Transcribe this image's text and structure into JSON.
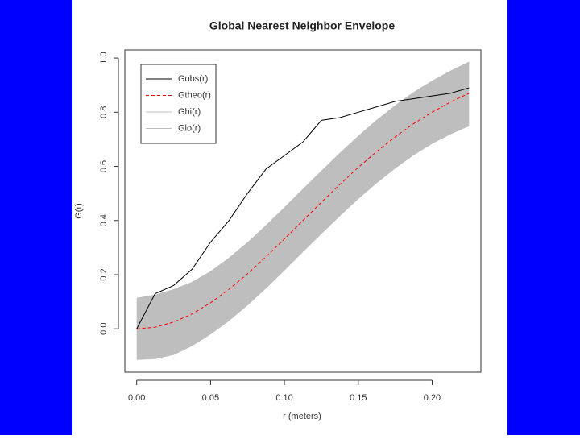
{
  "chart_data": {
    "type": "line",
    "title": "Global Nearest Neighbor Envelope",
    "xlabel": "r (meters)",
    "ylabel": "G(r)",
    "x": [
      0,
      0.0125,
      0.025,
      0.0375,
      0.05,
      0.0625,
      0.075,
      0.0875,
      0.1,
      0.1125,
      0.125,
      0.1375,
      0.15,
      0.1625,
      0.175,
      0.1875,
      0.2,
      0.2125,
      0.225
    ],
    "series": [
      {
        "name": "Gobs(r)",
        "color": "#000000",
        "values": [
          0,
          0.13,
          0.16,
          0.22,
          0.32,
          0.4,
          0.5,
          0.59,
          0.64,
          0.69,
          0.77,
          0.78,
          0.8,
          0.82,
          0.84,
          0.85,
          0.86,
          0.87,
          0.89
        ]
      },
      {
        "name": "Gtheo(r)",
        "color": "#ff0000",
        "values": [
          0,
          0.006,
          0.025,
          0.055,
          0.096,
          0.146,
          0.203,
          0.266,
          0.332,
          0.4,
          0.467,
          0.533,
          0.596,
          0.655,
          0.709,
          0.758,
          0.8,
          0.838,
          0.87
        ]
      },
      {
        "name": "Ghi(r)",
        "color": "#bebebe",
        "values": [
          0.113,
          0.125,
          0.145,
          0.172,
          0.211,
          0.261,
          0.318,
          0.381,
          0.447,
          0.515,
          0.582,
          0.648,
          0.711,
          0.77,
          0.824,
          0.873,
          0.915,
          0.952,
          0.985
        ]
      },
      {
        "name": "Glo(r)",
        "color": "#bebebe",
        "values": [
          -0.113,
          -0.11,
          -0.095,
          -0.062,
          -0.019,
          0.031,
          0.088,
          0.151,
          0.217,
          0.285,
          0.352,
          0.418,
          0.481,
          0.54,
          0.594,
          0.643,
          0.685,
          0.72,
          0.75
        ]
      }
    ],
    "xlim": [
      -0.008,
      0.233
    ],
    "ylim": [
      -0.16,
      1.03
    ],
    "xticks": [
      {
        "value": 0,
        "label": "0.00"
      },
      0.05,
      {
        "value": 0.1,
        "label": "0.10"
      },
      0.15,
      {
        "value": 0.2,
        "label": "0.20"
      }
    ],
    "yticks": [
      {
        "value": 0,
        "label": "0.0"
      },
      0.2,
      0.4,
      0.6,
      0.8,
      {
        "value": 1,
        "label": "1.0"
      }
    ],
    "legend": "top-left"
  }
}
